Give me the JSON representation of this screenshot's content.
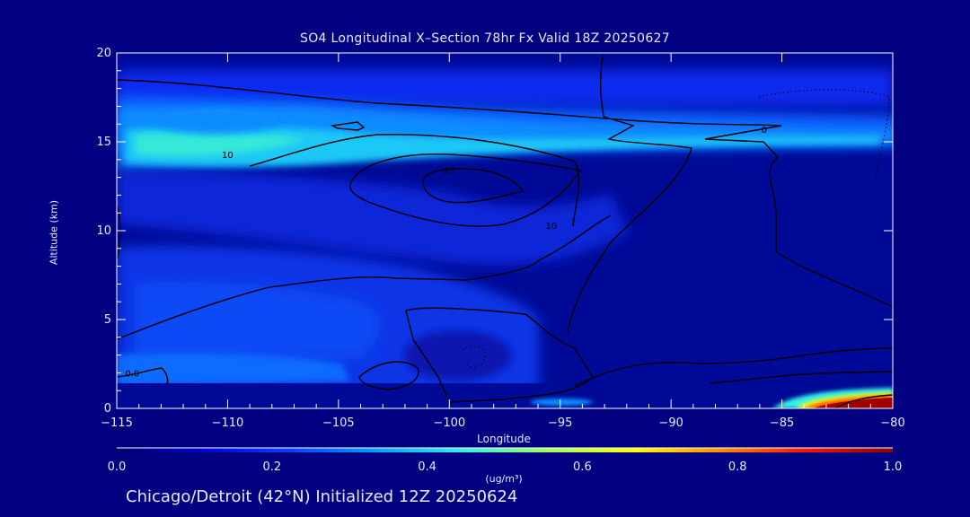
{
  "colors": {
    "background": "#000080",
    "text": "#e8e8ff",
    "contour": "#000000",
    "frame": "#ffffff"
  },
  "chart_data": {
    "type": "heatmap",
    "title": "SO4 Longitudinal X–Section 78hr  Fx Valid 18Z 20250627",
    "xlabel": "Longitude",
    "ylabel": "Altitude (km)",
    "xlim": [
      -115,
      -80
    ],
    "ylim": [
      0,
      20
    ],
    "x_ticks": [
      -115,
      -110,
      -105,
      -100,
      -95,
      -90,
      -85,
      -80
    ],
    "x_tick_labels": [
      "−115",
      "−110",
      "−105",
      "−100",
      "−95",
      "−90",
      "−85",
      "−80"
    ],
    "y_ticks": [
      0,
      5,
      10,
      15,
      20
    ],
    "y_tick_labels": [
      "0",
      "5",
      "10",
      "15",
      "20"
    ],
    "colorbar": {
      "min": 0.0,
      "max": 1.0,
      "ticks": [
        0.0,
        0.2,
        0.4,
        0.6,
        0.8,
        1.0
      ],
      "tick_labels": [
        "0.0",
        "0.2",
        "0.4",
        "0.6",
        "0.8",
        "1.0"
      ],
      "units": "(ug/m³)",
      "colors": [
        "#000066",
        "#0000d0",
        "#0a3cff",
        "#00a0ff",
        "#30f0e8",
        "#a0ff60",
        "#ffff00",
        "#ff8c00",
        "#ff1000",
        "#8b0000"
      ]
    },
    "field_features": [
      {
        "lon_range": [
          -115,
          -80
        ],
        "alt_range": [
          14,
          16
        ],
        "value": 0.35
      },
      {
        "lon_range": [
          -112,
          -90
        ],
        "alt_range": [
          13,
          15
        ],
        "value": 0.3
      },
      {
        "lon_range": [
          -115,
          -97
        ],
        "alt_range": [
          1,
          8
        ],
        "value": 0.12
      },
      {
        "lon_range": [
          -84,
          -80
        ],
        "alt_range": [
          0,
          1
        ],
        "value": 1.0
      }
    ],
    "contour_labels": [
      {
        "text": "0",
        "lon": -85.8,
        "alt": 15.7
      },
      {
        "text": "10",
        "lon": -110.0,
        "alt": 14.3
      },
      {
        "text": "20",
        "lon": -100.0,
        "alt": 13.4
      },
      {
        "text": "10",
        "lon": -95.4,
        "alt": 10.3
      },
      {
        "text": "0.0",
        "lon": -114.3,
        "alt": 2.0
      }
    ]
  },
  "footer": "Chicago/Detroit (42°N) Initialized 12Z 20250624"
}
